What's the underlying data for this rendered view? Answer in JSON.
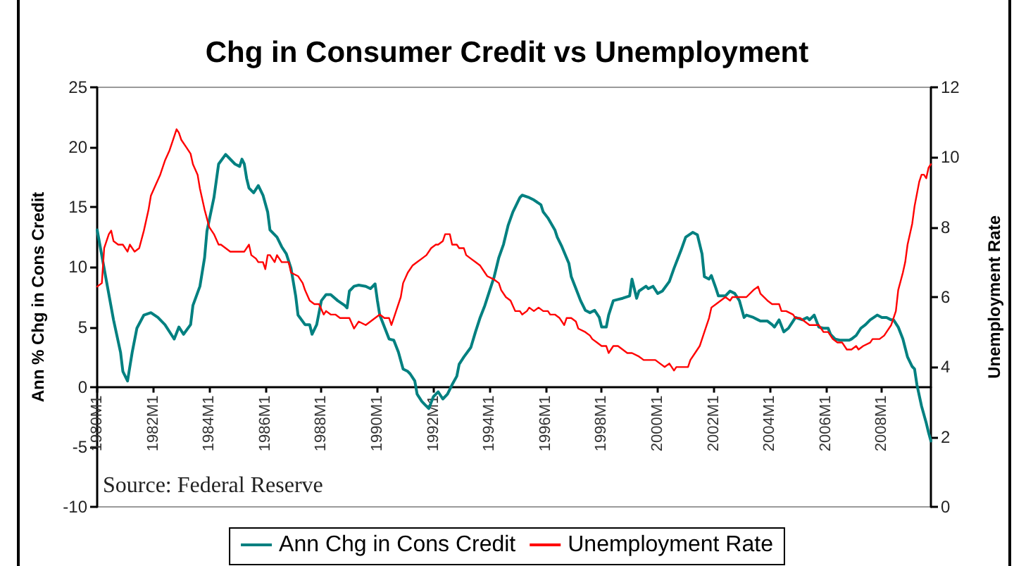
{
  "chart_data": {
    "type": "line",
    "title": "Chg in Consumer Credit vs Unemployment",
    "ylabel": "Ann % Chg in Cons Credit",
    "y2label": "Unemployment Rate",
    "annotations": [
      "Source: Federal Reserve"
    ],
    "xlim": [
      "1980-01",
      "2009-10"
    ],
    "xticks": [
      {
        "value": "1980-01",
        "label": "1980M1"
      },
      {
        "value": "1982-01",
        "label": "1982M1"
      },
      {
        "value": "1984-01",
        "label": "1984M1"
      },
      {
        "value": "1986-01",
        "label": "1986M1"
      },
      {
        "value": "1988-01",
        "label": "1988M1"
      },
      {
        "value": "1990-01",
        "label": "1990M1"
      },
      {
        "value": "1992-01",
        "label": "1992M1"
      },
      {
        "value": "1994-01",
        "label": "1994M1"
      },
      {
        "value": "1996-01",
        "label": "1996M1"
      },
      {
        "value": "1998-01",
        "label": "1998M1"
      },
      {
        "value": "2000-01",
        "label": "2000M1"
      },
      {
        "value": "2002-01",
        "label": "2002M1"
      },
      {
        "value": "2004-01",
        "label": "2004M1"
      },
      {
        "value": "2006-01",
        "label": "2006M1"
      },
      {
        "value": "2008-01",
        "label": "2008M1"
      }
    ],
    "ylim": [
      -10,
      25
    ],
    "yticks": [
      -10,
      -5,
      0,
      5,
      10,
      15,
      20,
      25
    ],
    "y2lim": [
      0,
      12
    ],
    "y2ticks": [
      0,
      2,
      4,
      6,
      8,
      10,
      12
    ],
    "grid": false,
    "legend": "bottom",
    "marker": "none",
    "line_style": "solid",
    "series": [
      {
        "name": "Ann Chg in Cons Credit",
        "color": "#008080",
        "x": [
          "1980-01",
          "1980-05",
          "1980-08",
          "1980-11",
          "1980-12",
          "1981-02",
          "1981-04",
          "1981-06",
          "1981-09",
          "1981-12",
          "1982-03",
          "1982-06",
          "1982-09",
          "1982-10",
          "1982-12",
          "1983-02",
          "1983-05",
          "1983-06",
          "1983-09",
          "1983-11",
          "1983-12",
          "1984-03",
          "1984-05",
          "1984-08",
          "1984-09",
          "1984-12",
          "1985-02",
          "1985-03",
          "1985-04",
          "1985-05",
          "1985-06",
          "1985-08",
          "1985-10",
          "1985-12",
          "1986-02",
          "1986-03",
          "1986-06",
          "1986-08",
          "1986-10",
          "1986-12",
          "1987-02",
          "1987-03",
          "1987-06",
          "1987-08",
          "1987-09",
          "1987-11",
          "1988-01",
          "1988-03",
          "1988-05",
          "1988-08",
          "1988-11",
          "1988-12",
          "1989-01",
          "1989-03",
          "1989-05",
          "1989-08",
          "1989-10",
          "1989-12",
          "1990-01",
          "1990-02",
          "1990-04",
          "1990-06",
          "1990-08",
          "1990-10",
          "1990-12",
          "1991-02",
          "1991-03",
          "1991-05",
          "1991-06",
          "1991-08",
          "1991-09",
          "1991-11",
          "1992-01",
          "1992-03",
          "1992-05",
          "1992-07",
          "1992-09",
          "1992-11",
          "1992-12",
          "1993-02",
          "1993-05",
          "1993-07",
          "1993-09",
          "1993-11",
          "1994-01",
          "1994-03",
          "1994-05",
          "1994-07",
          "1994-09",
          "1994-11",
          "1995-02",
          "1995-03",
          "1995-06",
          "1995-08",
          "1995-11",
          "1995-12",
          "1996-02",
          "1996-05",
          "1996-06",
          "1996-08",
          "1996-11",
          "1996-12",
          "1997-02",
          "1997-04",
          "1997-06",
          "1997-08",
          "1997-10",
          "1997-12",
          "1998-01",
          "1998-03",
          "1998-04",
          "1998-06",
          "1998-08",
          "1998-10",
          "1999-01",
          "1999-02",
          "1999-04",
          "1999-05",
          "1999-08",
          "1999-09",
          "1999-11",
          "2000-01",
          "2000-03",
          "2000-06",
          "2000-08",
          "2000-11",
          "2001-01",
          "2001-04",
          "2001-06",
          "2001-08",
          "2001-09",
          "2001-11",
          "2001-12",
          "2002-02",
          "2002-03",
          "2002-06",
          "2002-08",
          "2002-10",
          "2002-12",
          "2003-02",
          "2003-03",
          "2003-06",
          "2003-08",
          "2003-09",
          "2003-12",
          "2004-02",
          "2004-03",
          "2004-05",
          "2004-07",
          "2004-09",
          "2004-11",
          "2004-12",
          "2005-03",
          "2005-05",
          "2005-06",
          "2005-08",
          "2005-10",
          "2005-12",
          "2006-02",
          "2006-03",
          "2006-05",
          "2006-07",
          "2006-09",
          "2006-11",
          "2006-12",
          "2007-02",
          "2007-04",
          "2007-06",
          "2007-08",
          "2007-11",
          "2008-01",
          "2008-03",
          "2008-05",
          "2008-06",
          "2008-08",
          "2008-10",
          "2008-12",
          "2009-02",
          "2009-03",
          "2009-04",
          "2009-06",
          "2009-08",
          "2009-09",
          "2009-10"
        ],
        "values": [
          13.1,
          8.8,
          5.6,
          2.9,
          1.3,
          0.5,
          2.9,
          4.9,
          6.0,
          6.2,
          5.8,
          5.2,
          4.3,
          4.0,
          5.0,
          4.4,
          5.2,
          6.8,
          8.4,
          10.8,
          13.0,
          15.8,
          18.6,
          19.4,
          19.2,
          18.6,
          18.4,
          19.0,
          18.6,
          17.4,
          16.6,
          16.2,
          16.8,
          16.0,
          14.6,
          13.1,
          12.5,
          11.7,
          11.1,
          9.9,
          7.6,
          6.0,
          5.2,
          5.2,
          4.4,
          5.2,
          7.2,
          7.7,
          7.7,
          7.2,
          6.8,
          6.6,
          8.0,
          8.4,
          8.5,
          8.4,
          8.2,
          8.6,
          7.2,
          6.0,
          5.0,
          4.0,
          3.9,
          2.9,
          1.5,
          1.3,
          1.1,
          0.5,
          -0.6,
          -1.2,
          -1.4,
          -1.8,
          -0.8,
          -0.4,
          -1.0,
          -0.6,
          0.2,
          0.9,
          1.9,
          2.5,
          3.3,
          4.6,
          5.8,
          6.8,
          8.0,
          9.2,
          10.8,
          11.9,
          13.5,
          14.6,
          15.8,
          16.0,
          15.8,
          15.6,
          15.2,
          14.6,
          14.1,
          13.1,
          12.5,
          11.7,
          10.3,
          9.2,
          8.2,
          7.2,
          6.4,
          6.2,
          6.4,
          5.8,
          5.0,
          5.0,
          6.0,
          7.2,
          7.3,
          7.4,
          7.6,
          9.0,
          7.4,
          8.0,
          8.4,
          8.2,
          8.4,
          7.8,
          8.0,
          8.8,
          9.9,
          11.4,
          12.5,
          12.9,
          12.7,
          11.1,
          9.2,
          9.0,
          9.3,
          8.2,
          7.6,
          7.6,
          8.0,
          7.8,
          7.2,
          5.8,
          6.0,
          5.8,
          5.6,
          5.5,
          5.5,
          5.2,
          5.0,
          5.6,
          4.6,
          4.9,
          5.5,
          5.8,
          5.6,
          5.8,
          5.6,
          6.0,
          5.0,
          4.9,
          4.9,
          4.4,
          4.0,
          3.9,
          3.9,
          3.9,
          4.0,
          4.3,
          4.9,
          5.2,
          5.6,
          6.0,
          5.8,
          5.8,
          5.6,
          5.6,
          5.0,
          4.0,
          2.5,
          1.7,
          1.5,
          0.2,
          -1.6,
          -3.0,
          -3.8,
          -4.5
        ]
      },
      {
        "name": "Unemployment Rate",
        "color": "#ff0000",
        "axis": "y2",
        "x": [
          "1980-01",
          "1980-03",
          "1980-04",
          "1980-06",
          "1980-07",
          "1980-08",
          "1980-10",
          "1980-12",
          "1981-02",
          "1981-03",
          "1981-05",
          "1981-07",
          "1981-09",
          "1981-11",
          "1981-12",
          "1982-02",
          "1982-04",
          "1982-06",
          "1982-08",
          "1982-10",
          "1982-11",
          "1982-12",
          "1983-01",
          "1983-03",
          "1983-05",
          "1983-06",
          "1983-08",
          "1983-09",
          "1983-11",
          "1984-01",
          "1984-03",
          "1984-05",
          "1984-06",
          "1984-08",
          "1984-10",
          "1984-12",
          "1985-02",
          "1985-04",
          "1985-06",
          "1985-07",
          "1985-09",
          "1985-10",
          "1985-12",
          "1986-01",
          "1986-02",
          "1986-03",
          "1986-05",
          "1986-06",
          "1986-08",
          "1986-09",
          "1986-11",
          "1986-12",
          "1987-03",
          "1987-05",
          "1987-06",
          "1987-08",
          "1987-10",
          "1987-12",
          "1988-02",
          "1988-03",
          "1988-05",
          "1988-07",
          "1988-09",
          "1988-11",
          "1989-01",
          "1989-03",
          "1989-05",
          "1989-08",
          "1989-10",
          "1989-12",
          "1990-02",
          "1990-04",
          "1990-06",
          "1990-07",
          "1990-08",
          "1990-09",
          "1990-11",
          "1990-12",
          "1991-02",
          "1991-04",
          "1991-06",
          "1991-08",
          "1991-10",
          "1991-12",
          "1992-02",
          "1992-03",
          "1992-05",
          "1992-06",
          "1992-08",
          "1992-09",
          "1992-11",
          "1992-12",
          "1993-02",
          "1993-03",
          "1993-05",
          "1993-07",
          "1993-09",
          "1993-11",
          "1993-12",
          "1994-03",
          "1994-05",
          "1994-06",
          "1994-08",
          "1994-10",
          "1994-12",
          "1995-02",
          "1995-03",
          "1995-05",
          "1995-06",
          "1995-08",
          "1995-10",
          "1995-12",
          "1996-02",
          "1996-03",
          "1996-05",
          "1996-07",
          "1996-09",
          "1996-10",
          "1996-12",
          "1997-02",
          "1997-03",
          "1997-06",
          "1997-08",
          "1997-09",
          "1997-11",
          "1998-01",
          "1998-03",
          "1998-04",
          "1998-06",
          "1998-08",
          "1998-10",
          "1998-12",
          "1999-02",
          "1999-05",
          "1999-07",
          "1999-09",
          "1999-12",
          "2000-02",
          "2000-04",
          "2000-06",
          "2000-08",
          "2000-09",
          "2000-12",
          "2001-02",
          "2001-03",
          "2001-05",
          "2001-07",
          "2001-09",
          "2001-11",
          "2001-12",
          "2002-02",
          "2002-04",
          "2002-06",
          "2002-08",
          "2002-09",
          "2002-12",
          "2003-02",
          "2003-03",
          "2003-06",
          "2003-08",
          "2003-09",
          "2003-12",
          "2004-02",
          "2004-03",
          "2004-05",
          "2004-06",
          "2004-08",
          "2004-11",
          "2004-12",
          "2005-02",
          "2005-04",
          "2005-06",
          "2005-08",
          "2005-10",
          "2005-12",
          "2006-02",
          "2006-04",
          "2006-06",
          "2006-08",
          "2006-10",
          "2006-12",
          "2007-02",
          "2007-03",
          "2007-05",
          "2007-08",
          "2007-09",
          "2007-12",
          "2008-02",
          "2008-03",
          "2008-05",
          "2008-06",
          "2008-07",
          "2008-08",
          "2008-10",
          "2008-11",
          "2008-12",
          "2009-02",
          "2009-03",
          "2009-05",
          "2009-06",
          "2009-07",
          "2009-08",
          "2009-09",
          "2009-10"
        ],
        "values": [
          6.3,
          6.4,
          7.4,
          7.8,
          7.9,
          7.6,
          7.5,
          7.5,
          7.3,
          7.5,
          7.3,
          7.4,
          7.9,
          8.5,
          8.9,
          9.2,
          9.5,
          9.9,
          10.2,
          10.6,
          10.8,
          10.7,
          10.5,
          10.3,
          10.1,
          9.8,
          9.5,
          9.1,
          8.5,
          8.0,
          7.8,
          7.5,
          7.5,
          7.4,
          7.3,
          7.3,
          7.3,
          7.3,
          7.5,
          7.2,
          7.1,
          7.0,
          7.0,
          6.8,
          7.2,
          7.2,
          7.0,
          7.2,
          7.0,
          7.0,
          7.0,
          6.7,
          6.6,
          6.4,
          6.2,
          5.9,
          5.8,
          5.8,
          5.5,
          5.6,
          5.5,
          5.5,
          5.4,
          5.4,
          5.4,
          5.1,
          5.3,
          5.2,
          5.3,
          5.4,
          5.5,
          5.4,
          5.4,
          5.2,
          5.4,
          5.6,
          6.0,
          6.4,
          6.7,
          6.9,
          7.0,
          7.1,
          7.2,
          7.4,
          7.5,
          7.5,
          7.6,
          7.8,
          7.8,
          7.5,
          7.5,
          7.4,
          7.4,
          7.2,
          7.1,
          7.0,
          6.9,
          6.7,
          6.6,
          6.5,
          6.4,
          6.2,
          6.0,
          5.9,
          5.6,
          5.6,
          5.5,
          5.6,
          5.7,
          5.6,
          5.7,
          5.6,
          5.6,
          5.5,
          5.5,
          5.4,
          5.2,
          5.4,
          5.4,
          5.3,
          5.1,
          5.0,
          4.9,
          4.8,
          4.7,
          4.6,
          4.6,
          4.4,
          4.6,
          4.6,
          4.5,
          4.4,
          4.4,
          4.3,
          4.2,
          4.2,
          4.2,
          4.1,
          4.0,
          4.1,
          3.9,
          4.0,
          4.0,
          4.0,
          4.2,
          4.4,
          4.6,
          5.0,
          5.4,
          5.7,
          5.8,
          5.9,
          6.0,
          5.9,
          6.0,
          6.0,
          6.0,
          6.0,
          6.2,
          6.3,
          6.1,
          5.9,
          5.8,
          5.8,
          5.8,
          5.6,
          5.6,
          5.5,
          5.4,
          5.4,
          5.3,
          5.2,
          5.2,
          5.2,
          5.0,
          5.0,
          4.8,
          4.7,
          4.7,
          4.5,
          4.5,
          4.6,
          4.5,
          4.6,
          4.7,
          4.8,
          4.8,
          4.9,
          5.0,
          5.2,
          5.4,
          5.6,
          6.2,
          6.7,
          7.0,
          7.5,
          8.1,
          8.6,
          9.3,
          9.5,
          9.5,
          9.4,
          9.7,
          9.8
        ]
      }
    ]
  }
}
